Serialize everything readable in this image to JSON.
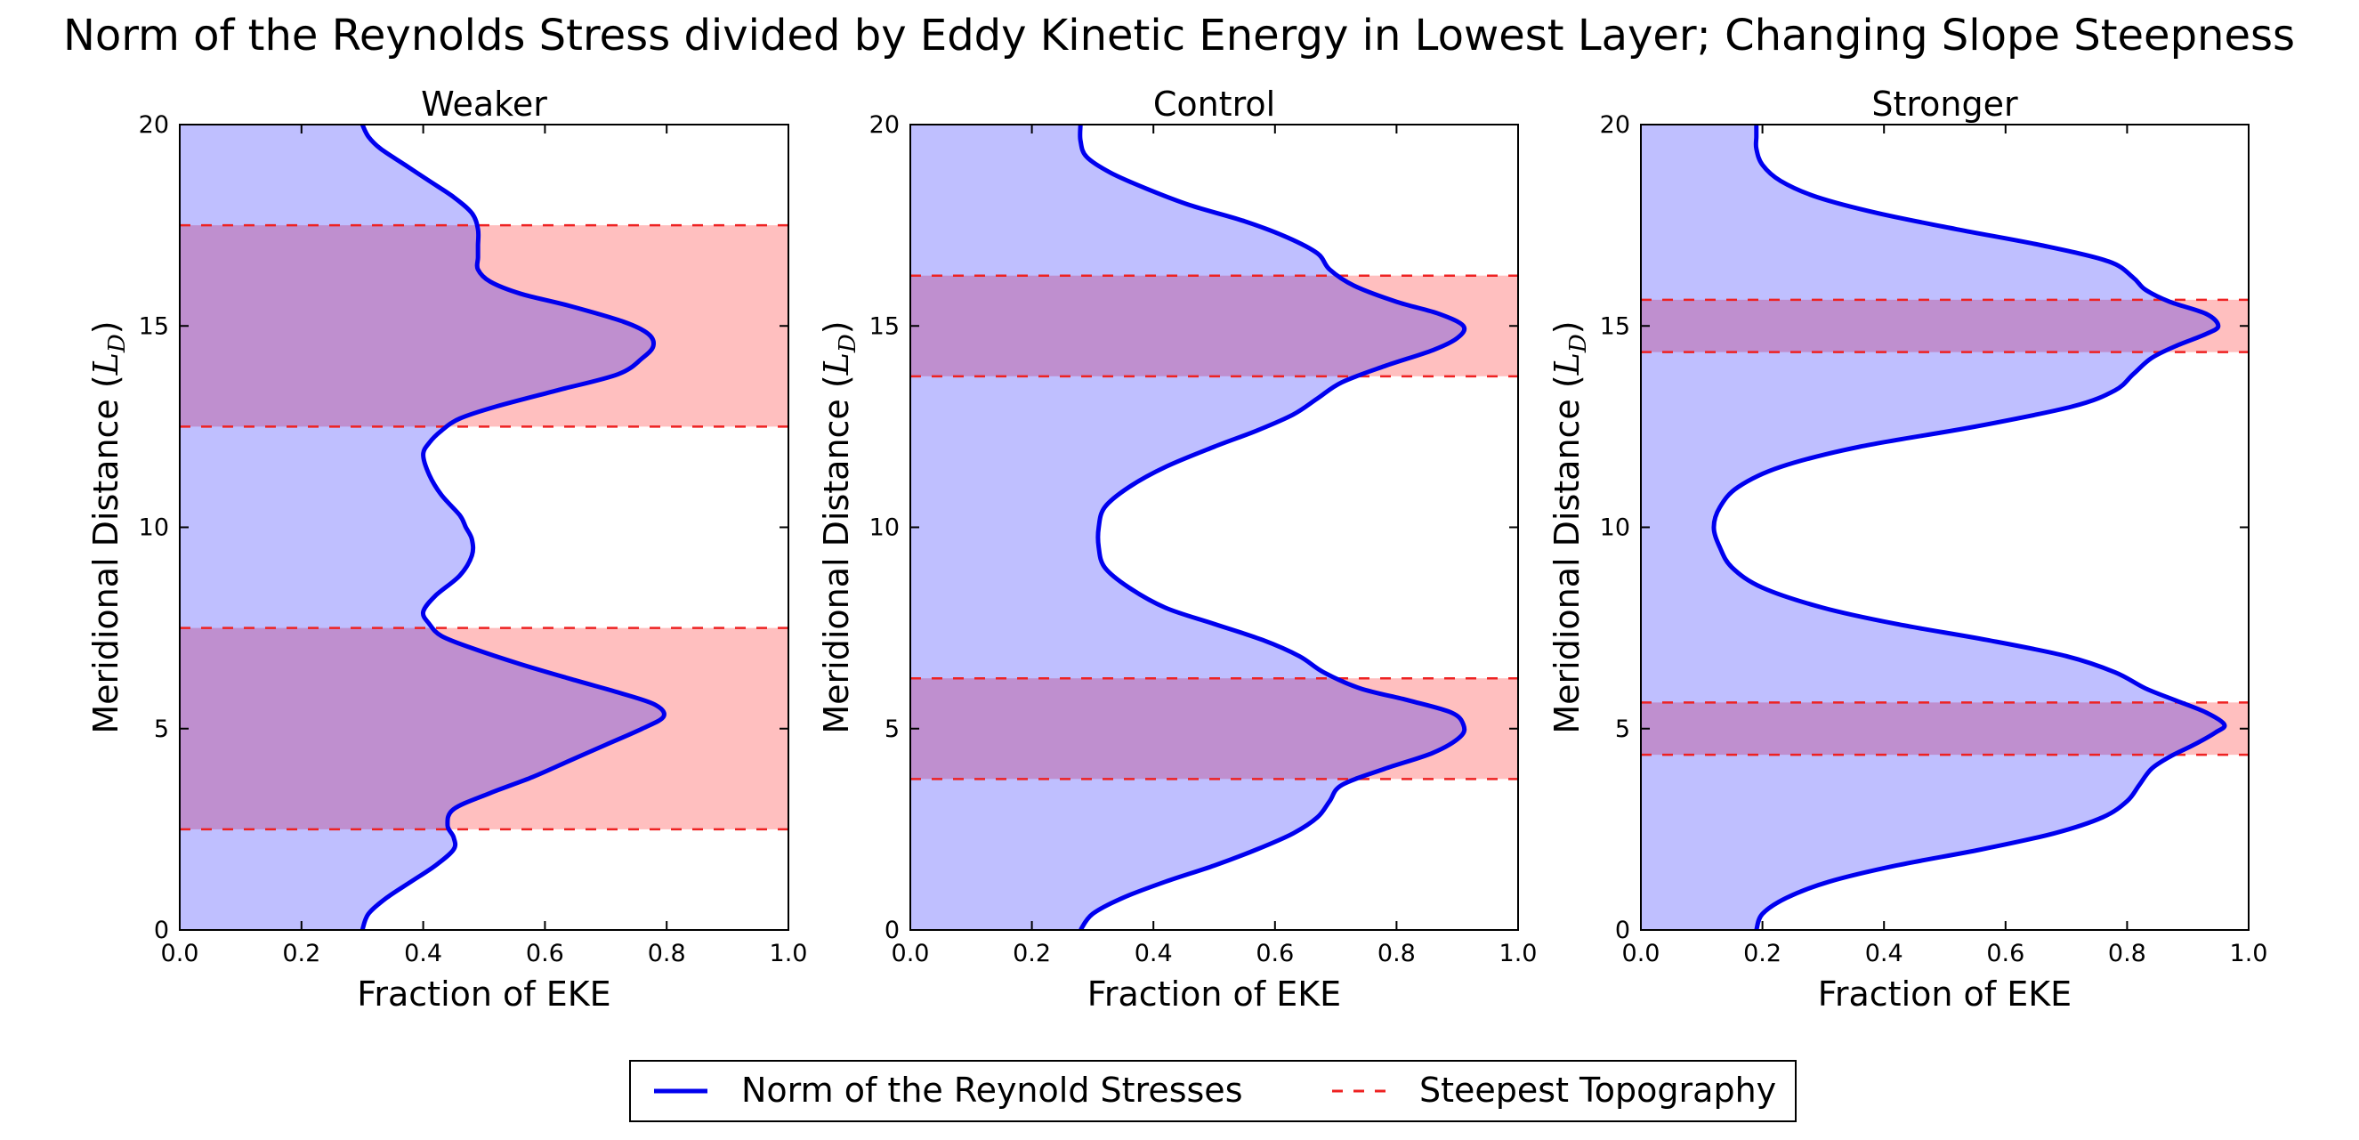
{
  "figure": {
    "title": "Norm of the Reynolds Stress divided by Eddy Kinetic Energy in Lowest Layer; Changing Slope Steepness"
  },
  "legend": {
    "items": [
      {
        "label": "Norm of the Reynold Stresses",
        "color": "#0000ee",
        "style": "solid"
      },
      {
        "label": "Steepest Topography",
        "color": "#ee2222",
        "style": "dashed"
      }
    ]
  },
  "colors": {
    "curve": "#0000ee",
    "curve_fill": "#bfbfff",
    "band_fill": "#ffbfbf",
    "overlap_fill": "#bf8fcf",
    "dashed": "#ee2222"
  },
  "chart_data": [
    {
      "type": "area",
      "title": "Weaker",
      "xlabel": "Fraction of EKE",
      "ylabel": "Meridional Distance (L_D)",
      "ylabel_main": "Meridional Distance (",
      "ylabel_sym": "L",
      "ylabel_sub": "D",
      "ylabel_close": ")",
      "xlim": [
        0,
        1
      ],
      "ylim": [
        0,
        20
      ],
      "xticks": [
        "0.0",
        "0.2",
        "0.4",
        "0.6",
        "0.8",
        "1.0"
      ],
      "yticks": [
        "0",
        "5",
        "10",
        "15",
        "20"
      ],
      "bands": [
        [
          2.5,
          7.5
        ],
        [
          12.5,
          17.5
        ]
      ],
      "series": [
        {
          "name": "Norm of the Reynold Stresses",
          "y": [
            0,
            0.4,
            0.8,
            1.2,
            1.6,
            2.0,
            2.3,
            2.6,
            3.0,
            3.4,
            3.8,
            4.2,
            4.6,
            5.0,
            5.3,
            5.6,
            5.9,
            6.2,
            6.6,
            7.0,
            7.3,
            7.6,
            7.9,
            8.3,
            8.8,
            9.3,
            9.7,
            10.0,
            10.3,
            10.8,
            11.3,
            11.8,
            12.1,
            12.4,
            12.7,
            13.0,
            13.4,
            13.8,
            14.2,
            14.5,
            14.8,
            15.1,
            15.5,
            15.8,
            16.1,
            16.4,
            16.7,
            17.0,
            17.4,
            17.8,
            18.2,
            18.6,
            19.0,
            19.4,
            19.7,
            20.0
          ],
          "x": [
            0.3,
            0.31,
            0.34,
            0.38,
            0.42,
            0.45,
            0.45,
            0.44,
            0.45,
            0.51,
            0.58,
            0.64,
            0.7,
            0.76,
            0.795,
            0.78,
            0.72,
            0.65,
            0.56,
            0.48,
            0.43,
            0.41,
            0.4,
            0.42,
            0.46,
            0.48,
            0.48,
            0.47,
            0.46,
            0.43,
            0.41,
            0.4,
            0.41,
            0.43,
            0.46,
            0.52,
            0.62,
            0.72,
            0.76,
            0.778,
            0.77,
            0.73,
            0.64,
            0.56,
            0.51,
            0.49,
            0.49,
            0.49,
            0.49,
            0.48,
            0.45,
            0.41,
            0.37,
            0.33,
            0.31,
            0.3
          ]
        }
      ]
    },
    {
      "type": "area",
      "title": "Control",
      "xlabel": "Fraction of EKE",
      "ylabel": "Meridional Distance (L_D)",
      "ylabel_main": "Meridional Distance (",
      "ylabel_sym": "L",
      "ylabel_sub": "D",
      "ylabel_close": ")",
      "xlim": [
        0,
        1
      ],
      "ylim": [
        0,
        20
      ],
      "xticks": [
        "0.0",
        "0.2",
        "0.4",
        "0.6",
        "0.8",
        "1.0"
      ],
      "yticks": [
        "0",
        "5",
        "10",
        "15",
        "20"
      ],
      "bands": [
        [
          3.75,
          6.25
        ],
        [
          13.75,
          16.25
        ]
      ],
      "series": [
        {
          "name": "Norm of the Reynold Stresses",
          "y": [
            0,
            0.4,
            0.8,
            1.2,
            1.6,
            2.0,
            2.4,
            2.8,
            3.2,
            3.6,
            4.0,
            4.4,
            4.8,
            5.1,
            5.4,
            5.7,
            6.0,
            6.4,
            6.8,
            7.2,
            7.6,
            8.0,
            8.5,
            9.0,
            9.5,
            10.0,
            10.5,
            11.0,
            11.5,
            12.0,
            12.4,
            12.8,
            13.2,
            13.6,
            14.0,
            14.4,
            14.7,
            15.0,
            15.3,
            15.6,
            16.0,
            16.4,
            16.8,
            17.2,
            17.6,
            18.0,
            18.4,
            18.8,
            19.2,
            19.6,
            20.0
          ],
          "x": [
            0.28,
            0.3,
            0.35,
            0.42,
            0.5,
            0.57,
            0.63,
            0.67,
            0.69,
            0.71,
            0.78,
            0.86,
            0.905,
            0.91,
            0.89,
            0.82,
            0.74,
            0.68,
            0.64,
            0.58,
            0.5,
            0.42,
            0.36,
            0.32,
            0.31,
            0.31,
            0.32,
            0.36,
            0.42,
            0.5,
            0.57,
            0.63,
            0.67,
            0.71,
            0.78,
            0.86,
            0.9,
            0.91,
            0.87,
            0.8,
            0.73,
            0.69,
            0.67,
            0.62,
            0.55,
            0.46,
            0.39,
            0.33,
            0.29,
            0.28,
            0.28
          ]
        }
      ]
    },
    {
      "type": "area",
      "title": "Stronger",
      "xlabel": "Fraction of EKE",
      "ylabel": "Meridional Distance (L_D)",
      "ylabel_main": "Meridional Distance (",
      "ylabel_sym": "L",
      "ylabel_sub": "D",
      "ylabel_close": ")",
      "xlim": [
        0,
        1
      ],
      "ylim": [
        0,
        20
      ],
      "xticks": [
        "0.0",
        "0.2",
        "0.4",
        "0.6",
        "0.8",
        "1.0"
      ],
      "yticks": [
        "0",
        "5",
        "10",
        "15",
        "20"
      ],
      "bands": [
        [
          4.35,
          5.65
        ],
        [
          14.35,
          15.65
        ]
      ],
      "series": [
        {
          "name": "Norm of the Reynold Stresses",
          "y": [
            0,
            0.4,
            0.8,
            1.2,
            1.6,
            2.0,
            2.4,
            2.8,
            3.2,
            3.6,
            4.0,
            4.3,
            4.6,
            4.9,
            5.1,
            5.4,
            5.7,
            6.0,
            6.4,
            6.8,
            7.2,
            7.6,
            8.0,
            8.5,
            9.0,
            9.5,
            10.0,
            10.5,
            11.0,
            11.5,
            12.0,
            12.5,
            13.0,
            13.4,
            13.8,
            14.2,
            14.5,
            14.8,
            15.0,
            15.3,
            15.6,
            15.9,
            16.2,
            16.6,
            17.0,
            17.4,
            17.8,
            18.2,
            18.6,
            19.0,
            19.4,
            19.7,
            20.0
          ],
          "x": [
            0.19,
            0.2,
            0.24,
            0.31,
            0.42,
            0.56,
            0.68,
            0.76,
            0.8,
            0.82,
            0.84,
            0.87,
            0.91,
            0.945,
            0.96,
            0.93,
            0.88,
            0.83,
            0.78,
            0.7,
            0.57,
            0.42,
            0.3,
            0.2,
            0.15,
            0.13,
            0.12,
            0.13,
            0.16,
            0.23,
            0.36,
            0.55,
            0.71,
            0.78,
            0.81,
            0.84,
            0.88,
            0.93,
            0.95,
            0.93,
            0.87,
            0.83,
            0.81,
            0.77,
            0.66,
            0.52,
            0.39,
            0.29,
            0.23,
            0.2,
            0.19,
            0.19,
            0.19
          ]
        }
      ]
    }
  ]
}
